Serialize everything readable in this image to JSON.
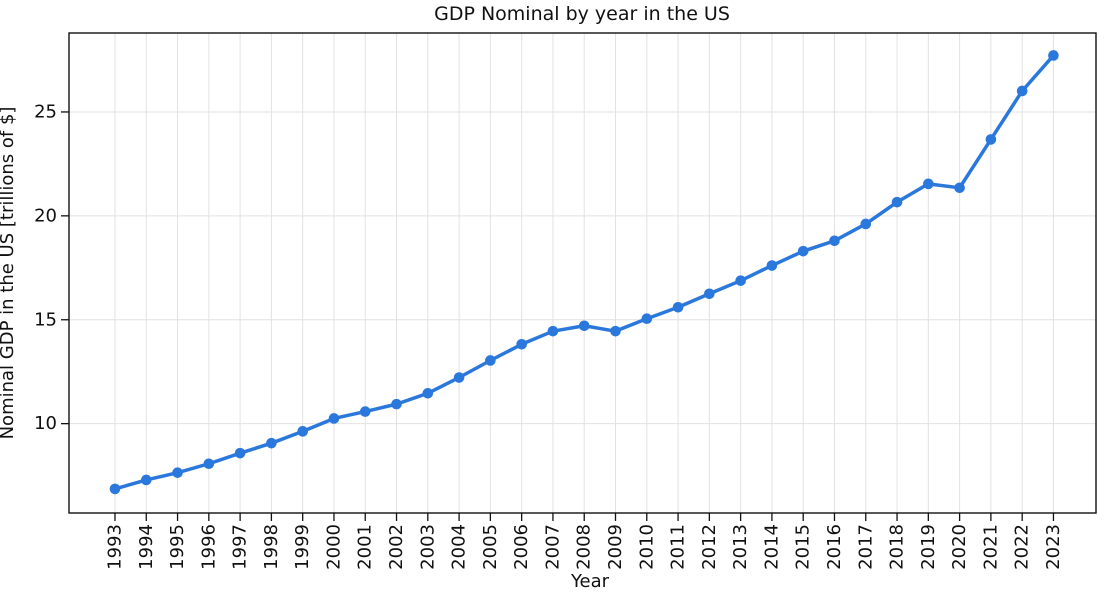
{
  "chart_data": {
    "type": "line",
    "title": "GDP Nominal by year in the US",
    "xlabel": "Year",
    "ylabel": "Nominal GDP in the US [trillions of $]",
    "x": [
      1993,
      1994,
      1995,
      1996,
      1997,
      1998,
      1999,
      2000,
      2001,
      2002,
      2003,
      2004,
      2005,
      2006,
      2007,
      2008,
      2009,
      2010,
      2011,
      2012,
      2013,
      2014,
      2015,
      2016,
      2017,
      2018,
      2019,
      2020,
      2021,
      2022,
      2023
    ],
    "values": [
      6.86,
      7.29,
      7.64,
      8.07,
      8.58,
      9.06,
      9.63,
      10.25,
      10.58,
      10.94,
      11.46,
      12.22,
      13.04,
      13.82,
      14.45,
      14.71,
      14.45,
      15.05,
      15.6,
      16.25,
      16.88,
      17.61,
      18.3,
      18.8,
      19.61,
      20.66,
      21.54,
      21.35,
      23.68,
      26.01,
      27.72
    ],
    "yticks": [
      10,
      15,
      20,
      25
    ],
    "xlim": [
      1991.53,
      2024.36
    ],
    "ylim": [
      5.7,
      28.8
    ],
    "grid": true,
    "legend": "none",
    "x_tick_rotation": 90,
    "line_color": "#2b78dd",
    "marker": "circle"
  }
}
